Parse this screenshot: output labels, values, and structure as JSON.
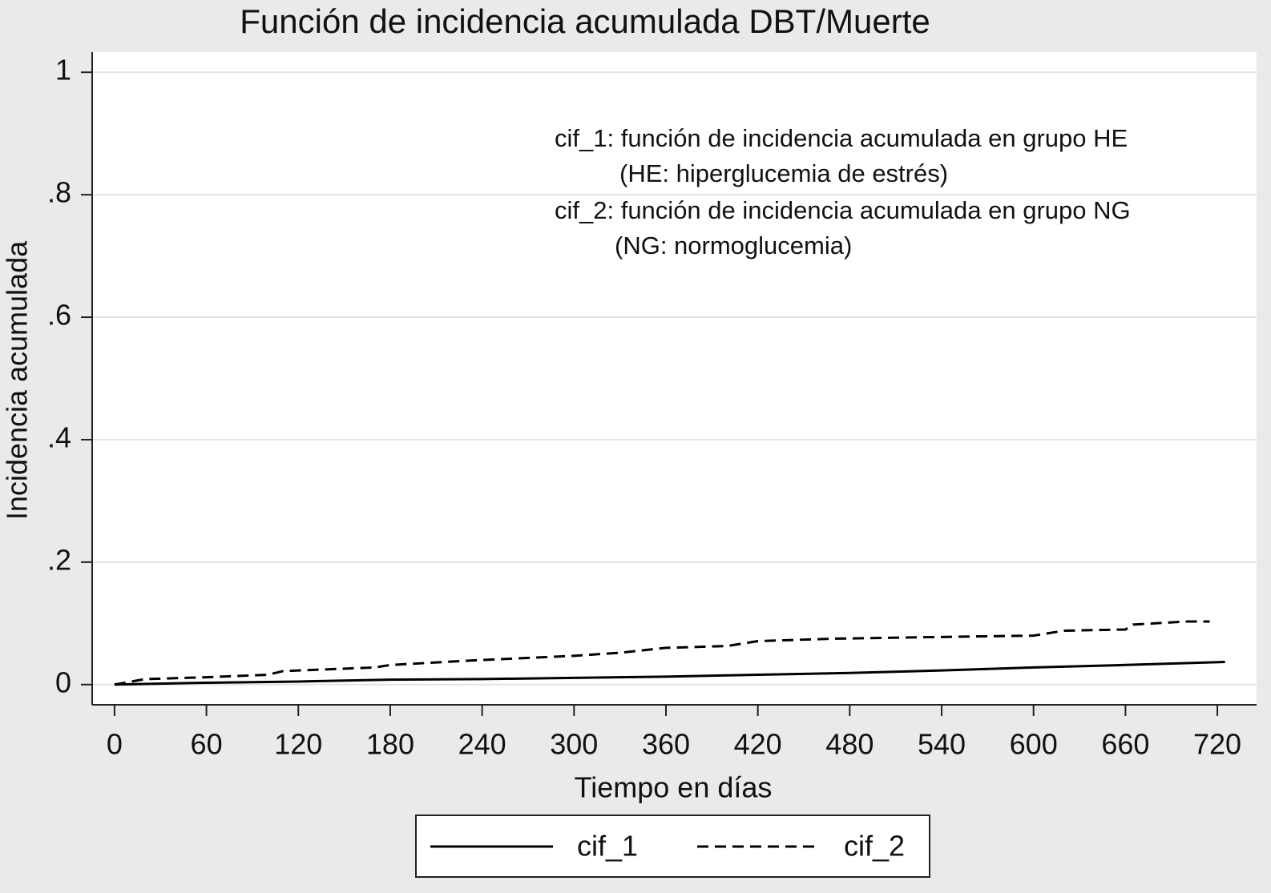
{
  "chart_data": {
    "type": "line",
    "title": "Función de incidencia acumulada DBT/Muerte",
    "x_label": "Tiempo en días",
    "y_label": "Incidencia acumulada",
    "annotations": [
      "cif_1: función de incidencia acumulada en grupo HE",
      "(HE: hiperglucemia de estrés)",
      "cif_2: función de incidencia acumulada en grupo NG",
      "(NG: normoglucemia)"
    ],
    "series": [
      {
        "name": "cif_1",
        "color": "#000000",
        "dash": "solid",
        "x": [
          0,
          60,
          120,
          180,
          240,
          300,
          360,
          420,
          480,
          540,
          600,
          660,
          725
        ],
        "values": [
          0,
          0.003,
          0.005,
          0.008,
          0.009,
          0.011,
          0.013,
          0.016,
          0.019,
          0.023,
          0.028,
          0.032,
          0.037
        ]
      },
      {
        "name": "cif_2",
        "color": "#000000",
        "dash": "dashed",
        "x": [
          0,
          20,
          60,
          100,
          110,
          170,
          180,
          230,
          300,
          330,
          360,
          400,
          420,
          470,
          520,
          600,
          620,
          660,
          665,
          700,
          715
        ],
        "values": [
          0,
          0.009,
          0.012,
          0.016,
          0.022,
          0.028,
          0.032,
          0.039,
          0.047,
          0.052,
          0.06,
          0.063,
          0.071,
          0.075,
          0.077,
          0.08,
          0.088,
          0.09,
          0.098,
          0.103,
          0.103
        ]
      }
    ],
    "xlim": [
      -14.6,
      745.6
    ],
    "xticks": [
      0,
      60,
      120,
      180,
      240,
      300,
      360,
      420,
      480,
      540,
      600,
      660,
      720
    ],
    "ylim": [
      -0.033,
      1.033
    ],
    "yticks": [
      0,
      {
        "value": 0.2,
        "label": ".2"
      },
      {
        "value": 0.4,
        "label": ".4"
      },
      {
        "value": 0.6,
        "label": ".6"
      },
      {
        "value": 0.8,
        "label": ".8"
      },
      1
    ],
    "grid": true,
    "legend": "bottom"
  }
}
